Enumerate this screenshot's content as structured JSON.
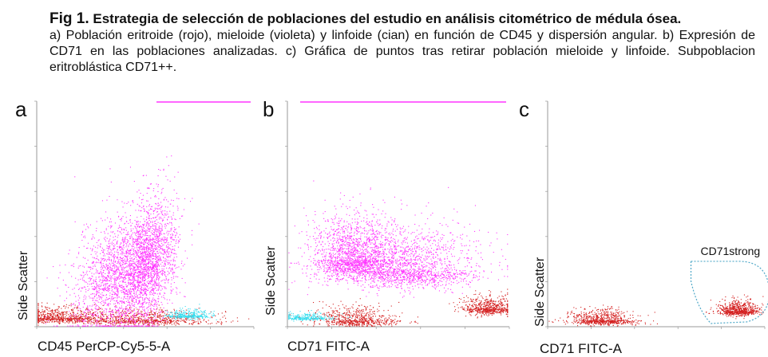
{
  "caption": {
    "fig_label": "Fig 1.",
    "title": "Estrategia de selección de poblaciones del estudio en análisis citométrico de médula ósea.",
    "description": "a) Población eritroide (rojo), mieloide (violeta) y linfoide (cian) en función de CD45 y dispersión angular. b) Expresión de CD71 en las poblaciones analizadas. c) Gráfica de puntos tras retirar población mieloide y linfoide. Subpoblacion eritroblástica CD71++."
  },
  "colors": {
    "erythroid": "#d42020",
    "myeloid": "#ff33ff",
    "lymphoid": "#33ddee",
    "gate": "#4fa8c8"
  },
  "panels": [
    {
      "letter": "a",
      "xlabel": "CD45 PerCP-Cy5-5-A",
      "ylabel": "Side Scatter"
    },
    {
      "letter": "b",
      "xlabel": "CD71 FITC-A",
      "ylabel": "Side Scatter"
    },
    {
      "letter": "c",
      "xlabel": "CD71 FITC-A",
      "ylabel": "Side Scatter",
      "gate_label": "CD71strong"
    }
  ],
  "chart_data": [
    {
      "type": "scatter",
      "title": "a",
      "xlabel": "CD45 PerCP-Cy5-5-A",
      "ylabel": "Side Scatter",
      "xscale": "log",
      "xlim": [
        1,
        100000
      ],
      "ylim": [
        0,
        262144
      ],
      "series": [
        {
          "name": "Eritroide",
          "color": "#d42020",
          "n": 1500,
          "cx": [
            0.1,
            0.48
          ],
          "cy": [
            0.04,
            0.03
          ],
          "spread": [
            0.1,
            0.025
          ]
        },
        {
          "name": "Mieloide",
          "color": "#ff33ff",
          "n": 3600,
          "cx": [
            0.5,
            0.36
          ],
          "cy": [
            0.29,
            0.22
          ],
          "spread": [
            0.06,
            0.09
          ]
        },
        {
          "name": "Linfoide",
          "color": "#33ddee",
          "n": 320,
          "cx": [
            0.7
          ],
          "cy": [
            0.05
          ],
          "spread": [
            0.05,
            0.015
          ]
        }
      ]
    },
    {
      "type": "scatter",
      "title": "b",
      "xlabel": "CD71 FITC-A",
      "ylabel": "Side Scatter",
      "xscale": "log",
      "xlim": [
        1,
        100000
      ],
      "ylim": [
        0,
        262144
      ],
      "series": [
        {
          "name": "Eritroide",
          "color": "#d42020",
          "n": 1300,
          "cx": [
            0.9,
            0.3
          ],
          "cy": [
            0.08,
            0.03
          ],
          "spread": [
            0.06,
            0.03
          ]
        },
        {
          "name": "Mieloide",
          "color": "#ff33ff",
          "n": 3400,
          "cx": [
            0.3,
            0.55
          ],
          "cy": [
            0.3,
            0.25
          ],
          "spread": [
            0.1,
            0.1
          ]
        },
        {
          "name": "Linfoide",
          "color": "#33ddee",
          "n": 280,
          "cx": [
            0.08
          ],
          "cy": [
            0.04
          ],
          "spread": [
            0.06,
            0.012
          ]
        }
      ]
    },
    {
      "type": "scatter",
      "title": "c",
      "xlabel": "CD71 FITC-A",
      "ylabel": "Side Scatter",
      "xscale": "log",
      "xlim": [
        1,
        100000
      ],
      "ylim": [
        0,
        262144
      ],
      "gate": "CD71strong",
      "series": [
        {
          "name": "Eritroide",
          "color": "#d42020",
          "n": 1400,
          "cx": [
            0.88,
            0.25
          ],
          "cy": [
            0.07,
            0.03
          ],
          "spread": [
            0.05,
            0.025
          ]
        }
      ]
    }
  ]
}
